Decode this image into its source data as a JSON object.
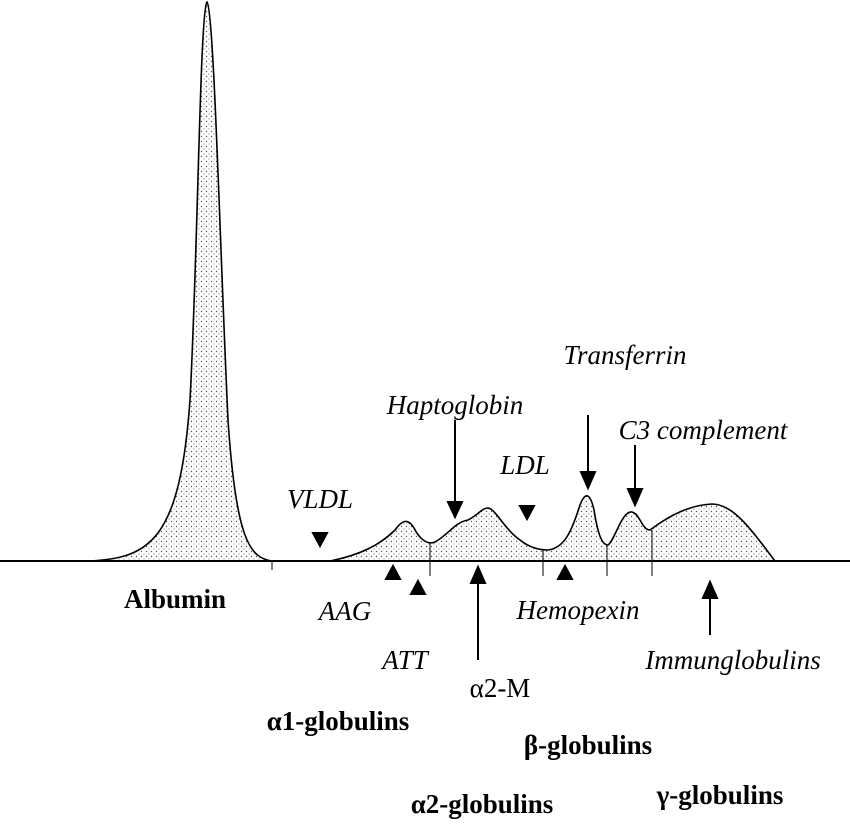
{
  "labels": {
    "albumin": "Albumin",
    "vldl": "VLDL",
    "haptoglobin": "Haptoglobin",
    "ldl": "LDL",
    "transferrin": "Transferrin",
    "c3": "C3 complement",
    "aag": "AAG",
    "att": "ATT",
    "a2m": "α2-M",
    "hemopexin": "Hemopexin",
    "immunoglobulins": "Immunglobulins",
    "a1_globulins": "α1-globulins",
    "b_globulins": "β-globulins",
    "a2_globulins": "α2-globulins",
    "g_globulins": "γ-globulins"
  }
}
